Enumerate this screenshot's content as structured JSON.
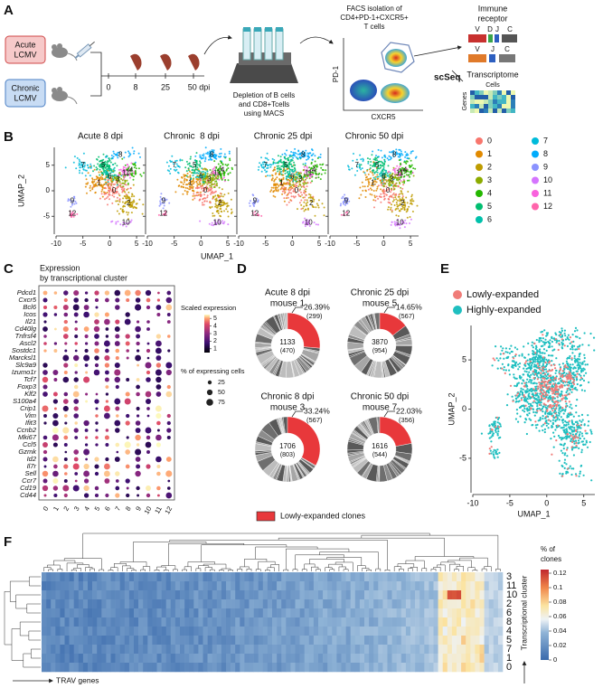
{
  "A": {
    "label": "A",
    "acute": [
      "Acute",
      "LCMV"
    ],
    "chronic": [
      "Chronic",
      "LCMV"
    ],
    "timeline": [
      "0",
      "8",
      "25",
      "50 dpi"
    ],
    "depletion": [
      "Depletion of B cells",
      "and CD8+Tcells",
      "using MACS"
    ],
    "facs": [
      "FACS isolation of",
      "CD4+PD-1+CXCR5+",
      "T cells"
    ],
    "facs_y": "PD-1",
    "facs_x": "CXCR5",
    "scseq": "scSeq",
    "receptor": [
      "Immune",
      "receptor"
    ],
    "vdjc": [
      "V",
      "D",
      "J",
      "C"
    ],
    "vjc": [
      "V",
      "J",
      "C"
    ],
    "transcriptome": "Transcriptome",
    "cells": "Cells",
    "genes": "Genes"
  },
  "B": {
    "label": "B",
    "panels": [
      "Acute 8 dpi",
      "Chronic  8 dpi",
      "Chronic 25 dpi",
      "Chronic 50 dpi"
    ],
    "x_label": "UMAP_1",
    "y_label": "UMAP_2",
    "xlim": [
      -10,
      6.5
    ],
    "ylim": [
      -8.5,
      8.5
    ],
    "xticks": [
      -10,
      -5,
      0,
      5
    ],
    "yticks": [
      -5,
      0,
      5
    ],
    "clusters": [
      {
        "name": "0",
        "color": "#F8766D"
      },
      {
        "name": "1",
        "color": "#E18A00"
      },
      {
        "name": "2",
        "color": "#BE9C00"
      },
      {
        "name": "3",
        "color": "#8CAB00"
      },
      {
        "name": "4",
        "color": "#24B700"
      },
      {
        "name": "5",
        "color": "#00BE70"
      },
      {
        "name": "6",
        "color": "#00C1AB"
      },
      {
        "name": "7",
        "color": "#00BBDA"
      },
      {
        "name": "8",
        "color": "#00ACFC"
      },
      {
        "name": "9",
        "color": "#8B93FF"
      },
      {
        "name": "10",
        "color": "#D575FE"
      },
      {
        "name": "11",
        "color": "#F962DD"
      },
      {
        "name": "12",
        "color": "#FF65AC"
      }
    ]
  },
  "C": {
    "label": "C",
    "title": [
      "Expression",
      "by transcriptional cluster"
    ],
    "genes": [
      "Pdcd1",
      "Cxcr5",
      "Bcl6",
      "Icos",
      "Il21",
      "Cd40lg",
      "Tnfrsf4",
      "Ascl2",
      "Sostdc1",
      "Marcksl1",
      "Slc9a9",
      "Izumo1r",
      "Tcf7",
      "Foxp3",
      "Klf2",
      "S100a4",
      "Crip1",
      "Vim",
      "Ifit3",
      "Ccnb2",
      "Mki67",
      "Ccl5",
      "Gzmk",
      "Id2",
      "Il7r",
      "Sell",
      "Ccr7",
      "Cd19",
      "Cd44"
    ],
    "clusters": [
      "0",
      "1",
      "2",
      "3",
      "4",
      "5",
      "6",
      "7",
      "8",
      "9",
      "10",
      "11",
      "12"
    ],
    "color_title": "Scaled expression",
    "color_lim": [
      0.5,
      5.5
    ],
    "color_ticks": [
      5,
      4,
      3,
      2,
      1
    ],
    "size_title": "% of expressing cells",
    "size_ticks": [
      25,
      50,
      75
    ]
  },
  "D": {
    "label": "D",
    "legend": "Lowly-expanded clones",
    "donuts": [
      {
        "title": [
          "Acute 8 dpi",
          "mouse 1"
        ],
        "value": 26.39,
        "value_label": "26.39%",
        "count": "(299)",
        "total": "1133",
        "total_sub": "(470)"
      },
      {
        "title": [
          "Chronic 25 dpi",
          "mouse 5"
        ],
        "value": 14.65,
        "value_label": "14.65%",
        "count": "(567)",
        "total": "3870",
        "total_sub": "(954)"
      },
      {
        "title": [
          "Chronic 8 dpi",
          "mouse 3"
        ],
        "value": 33.24,
        "value_label": "33.24%",
        "count": "(567)",
        "total": "1706",
        "total_sub": "(803)"
      },
      {
        "title": [
          "Chronic 50 dpi",
          "mouse 7"
        ],
        "value": 22.03,
        "value_label": "22.03%",
        "count": "(356)",
        "total": "1616",
        "total_sub": "(544)"
      }
    ]
  },
  "E": {
    "label": "E",
    "legend": [
      {
        "name": "Lowly-expanded",
        "color": "#F07C78"
      },
      {
        "name": "Highly-expanded",
        "color": "#1FBFC0"
      }
    ],
    "x_label": "UMAP_1",
    "y_label": "UMAP_2",
    "xlim": [
      -10,
      6.5
    ],
    "ylim": [
      -8.5,
      8.5
    ],
    "xticks": [
      -10,
      -5,
      0,
      5
    ],
    "yticks": [
      -5,
      0,
      5
    ]
  },
  "F": {
    "label": "F",
    "rows": [
      "3",
      "11",
      "10",
      "2",
      "6",
      "8",
      "4",
      "5",
      "7",
      "1",
      "0"
    ],
    "row_title": "Transcriptional cluster",
    "x_title": "TRAV genes",
    "color_title": [
      "% of",
      "clones"
    ],
    "color_lim": [
      0,
      0.125
    ],
    "color_ticks": [
      0.12,
      0.1,
      0.08,
      0.06,
      0.04,
      0.02,
      0
    ]
  }
}
